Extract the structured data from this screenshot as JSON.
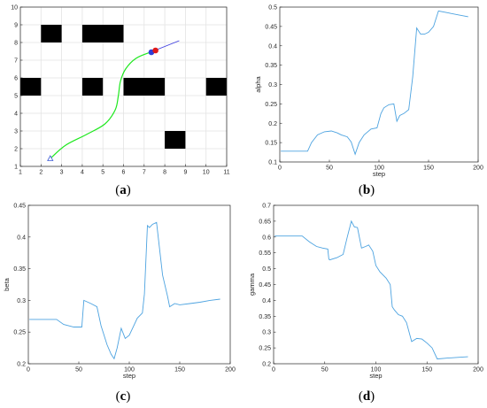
{
  "captions": {
    "a": {
      "open": "(",
      "letter": "a",
      "close": ")"
    },
    "b": {
      "open": "(",
      "letter": "b",
      "close": ")"
    },
    "c": {
      "open": "(",
      "letter": "c",
      "close": ")"
    },
    "d": {
      "open": "(",
      "letter": "d",
      "close": ")"
    }
  },
  "chart_data": [
    {
      "id": "a",
      "type": "scatter",
      "title": "",
      "xlabel": "",
      "ylabel": "",
      "xlim": [
        1,
        11
      ],
      "ylim": [
        1,
        10
      ],
      "xticks": [
        1,
        2,
        3,
        4,
        5,
        6,
        7,
        8,
        9,
        10,
        11
      ],
      "yticks": [
        1,
        2,
        3,
        4,
        5,
        6,
        7,
        8,
        9,
        10
      ],
      "grid": true,
      "obstacles": [
        {
          "x0": 2,
          "x1": 3,
          "y0": 8,
          "y1": 9
        },
        {
          "x0": 4,
          "x1": 6,
          "y0": 8,
          "y1": 9
        },
        {
          "x0": 1,
          "x1": 2,
          "y0": 5,
          "y1": 6
        },
        {
          "x0": 4,
          "x1": 5,
          "y0": 5,
          "y1": 6
        },
        {
          "x0": 6,
          "x1": 8,
          "y0": 5,
          "y1": 6
        },
        {
          "x0": 10,
          "x1": 11,
          "y0": 5,
          "y1": 6
        },
        {
          "x0": 8,
          "x1": 9,
          "y0": 2,
          "y1": 3
        }
      ],
      "path": [
        [
          2.5,
          1.5
        ],
        [
          3.2,
          2.2
        ],
        [
          4.2,
          2.8
        ],
        [
          5.1,
          3.4
        ],
        [
          5.6,
          4.2
        ],
        [
          5.75,
          5.0
        ],
        [
          5.85,
          5.8
        ],
        [
          6.1,
          6.5
        ],
        [
          6.6,
          7.1
        ],
        [
          7.3,
          7.45
        ]
      ],
      "start": {
        "x": 2.45,
        "y": 1.45
      },
      "heading_line": [
        [
          7.3,
          7.45
        ],
        [
          8.7,
          8.1
        ]
      ],
      "markers": [
        {
          "x": 7.35,
          "y": 7.45,
          "color": "#2f3fd8"
        },
        {
          "x": 7.55,
          "y": 7.55,
          "color": "#e01a1a"
        }
      ],
      "colors": {
        "path": "#1ee81e",
        "heading": "#3b3be0",
        "start": "#3e5bd6",
        "obstacle": "#000000"
      }
    },
    {
      "id": "b",
      "type": "line",
      "title": "",
      "xlabel": "step",
      "ylabel": "alpha",
      "xlim": [
        0,
        200
      ],
      "ylim": [
        0.1,
        0.5
      ],
      "xticks": [
        0,
        50,
        100,
        150,
        200
      ],
      "yticks": [
        0.1,
        0.15,
        0.2,
        0.25,
        0.3,
        0.35,
        0.4,
        0.45,
        0.5
      ],
      "grid": false,
      "series": [
        {
          "x": [
            1,
            10,
            20,
            28,
            32,
            38,
            45,
            52,
            58,
            62,
            68,
            72,
            76,
            80,
            85,
            92,
            98,
            102,
            105,
            110,
            115,
            118,
            121,
            125,
            130,
            134,
            138,
            142,
            146,
            150,
            155,
            160,
            170,
            180,
            190
          ],
          "values": [
            0.128,
            0.128,
            0.128,
            0.128,
            0.15,
            0.17,
            0.178,
            0.18,
            0.175,
            0.17,
            0.165,
            0.152,
            0.12,
            0.15,
            0.17,
            0.185,
            0.188,
            0.225,
            0.24,
            0.248,
            0.25,
            0.205,
            0.22,
            0.225,
            0.235,
            0.32,
            0.446,
            0.43,
            0.43,
            0.435,
            0.45,
            0.49,
            0.485,
            0.48,
            0.475
          ]
        }
      ],
      "color": "#4da3e0"
    },
    {
      "id": "c",
      "type": "line",
      "title": "",
      "xlabel": "step",
      "ylabel": "beta",
      "xlim": [
        0,
        200
      ],
      "ylim": [
        0.2,
        0.45
      ],
      "xticks": [
        0,
        50,
        100,
        150,
        200
      ],
      "yticks": [
        0.2,
        0.25,
        0.3,
        0.35,
        0.4,
        0.45
      ],
      "grid": false,
      "series": [
        {
          "x": [
            1,
            10,
            20,
            28,
            35,
            45,
            53,
            54,
            55,
            62,
            68,
            72,
            78,
            82,
            85,
            88,
            92,
            96,
            100,
            108,
            113,
            115,
            118,
            120,
            123,
            127,
            133,
            138,
            140,
            145,
            150,
            160,
            170,
            180,
            190
          ],
          "values": [
            0.27,
            0.27,
            0.27,
            0.27,
            0.262,
            0.258,
            0.258,
            0.28,
            0.3,
            0.295,
            0.29,
            0.26,
            0.23,
            0.215,
            0.208,
            0.225,
            0.256,
            0.24,
            0.245,
            0.272,
            0.28,
            0.31,
            0.418,
            0.415,
            0.42,
            0.423,
            0.34,
            0.306,
            0.29,
            0.295,
            0.293,
            0.295,
            0.297,
            0.3,
            0.302
          ]
        }
      ],
      "color": "#4da3e0"
    },
    {
      "id": "d",
      "type": "line",
      "title": "",
      "xlabel": "step",
      "ylabel": "gamma",
      "xlim": [
        0,
        200
      ],
      "ylim": [
        0.2,
        0.7
      ],
      "xticks": [
        0,
        50,
        100,
        150,
        200
      ],
      "yticks": [
        0.2,
        0.25,
        0.3,
        0.35,
        0.4,
        0.45,
        0.5,
        0.55,
        0.6,
        0.65,
        0.7
      ],
      "grid": false,
      "series": [
        {
          "x": [
            1,
            10,
            20,
            28,
            35,
            42,
            48,
            53,
            54,
            55,
            62,
            68,
            72,
            76,
            79,
            82,
            86,
            90,
            93,
            97,
            100,
            104,
            110,
            114,
            116,
            118,
            122,
            126,
            130,
            135,
            140,
            145,
            150,
            155,
            160,
            170,
            180,
            190
          ],
          "values": [
            0.603,
            0.603,
            0.603,
            0.603,
            0.585,
            0.57,
            0.565,
            0.562,
            0.53,
            0.528,
            0.535,
            0.545,
            0.6,
            0.65,
            0.632,
            0.63,
            0.565,
            0.57,
            0.575,
            0.555,
            0.51,
            0.49,
            0.47,
            0.45,
            0.38,
            0.37,
            0.355,
            0.35,
            0.33,
            0.27,
            0.28,
            0.278,
            0.265,
            0.25,
            0.215,
            0.218,
            0.22,
            0.222
          ]
        }
      ],
      "color": "#4da3e0"
    }
  ]
}
